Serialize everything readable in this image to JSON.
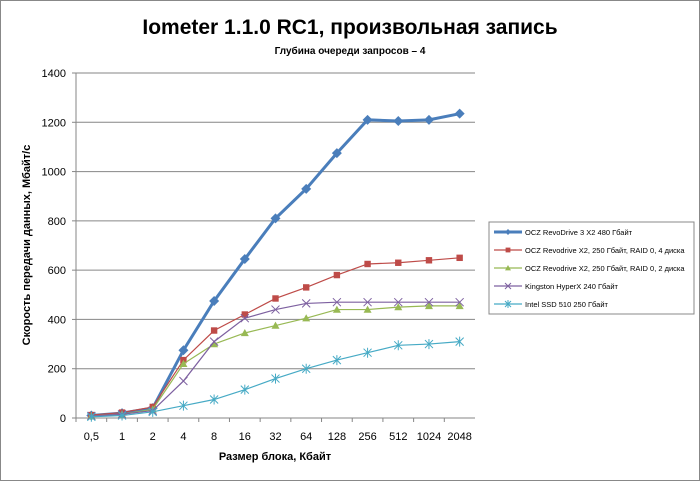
{
  "chart_data": {
    "type": "line",
    "title": "Iometer 1.1.0 RC1, произвольная запись",
    "subtitle": "Глубина очереди запросов – 4",
    "xlabel": "Размер блока, Кбайт",
    "ylabel": "Скорость передачи данных, Мбайт/с",
    "ylim": [
      0,
      1400
    ],
    "yticks": [
      0,
      200,
      400,
      600,
      800,
      1000,
      1200,
      1400
    ],
    "categories": [
      "0,5",
      "1",
      "2",
      "4",
      "8",
      "16",
      "32",
      "64",
      "128",
      "256",
      "512",
      "1024",
      "2048"
    ],
    "legend_position": "right",
    "series": [
      {
        "name": "OCZ RevoDrive 3 X2 480 Гбайт",
        "color": "#4a7ebb",
        "marker": "diamond",
        "values": [
          10,
          20,
          40,
          275,
          475,
          645,
          810,
          930,
          1075,
          1210,
          1205,
          1210,
          1235
        ]
      },
      {
        "name": "OCZ Revodrive X2, 250 Гбайт, RAID 0, 4 диска",
        "color": "#be4b48",
        "marker": "square",
        "values": [
          12,
          22,
          45,
          235,
          355,
          420,
          485,
          530,
          580,
          625,
          630,
          640,
          650
        ]
      },
      {
        "name": "OCZ Revodrive X2, 250 Гбайт, RAID 0, 2 диска",
        "color": "#98b954",
        "marker": "triangle",
        "values": [
          8,
          15,
          35,
          220,
          300,
          345,
          375,
          405,
          440,
          440,
          450,
          455,
          455
        ]
      },
      {
        "name": "Kingston HyperX 240 Гбайт",
        "color": "#7d60a0",
        "marker": "x",
        "values": [
          8,
          15,
          30,
          150,
          310,
          405,
          440,
          465,
          470,
          470,
          470,
          470,
          470
        ]
      },
      {
        "name": "Intel SSD 510 250 Гбайт",
        "color": "#46aac5",
        "marker": "star",
        "values": [
          5,
          10,
          25,
          50,
          75,
          115,
          160,
          200,
          235,
          265,
          295,
          300,
          310
        ]
      }
    ]
  }
}
